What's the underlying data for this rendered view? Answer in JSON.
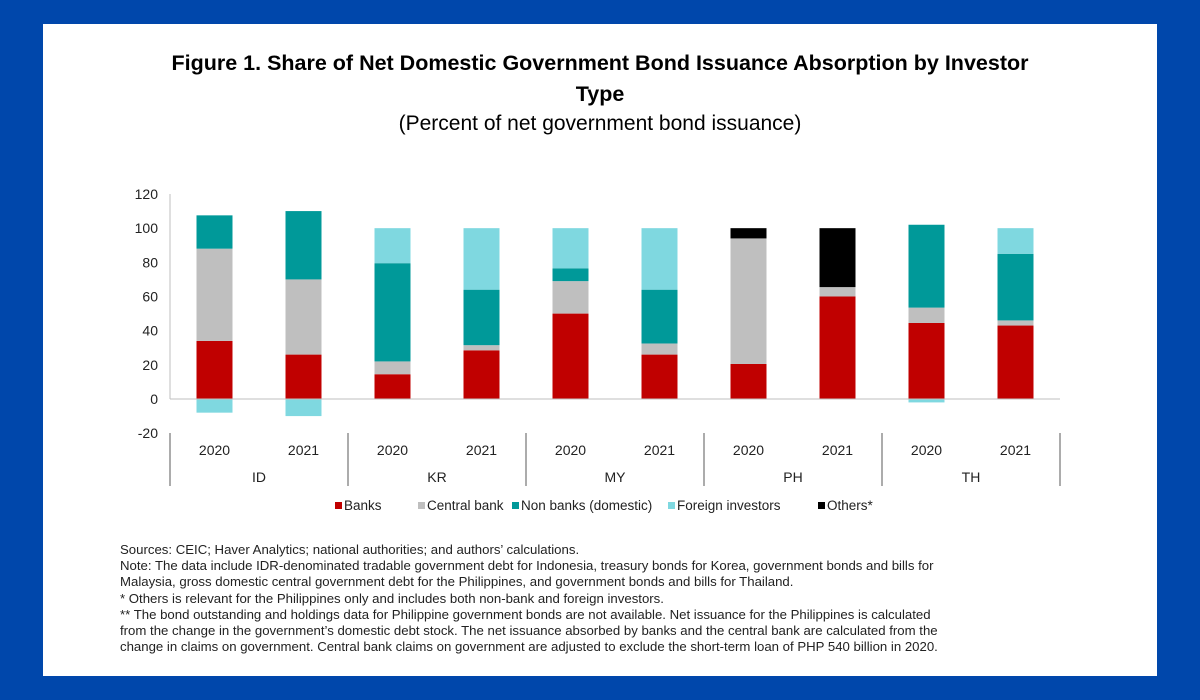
{
  "figure": {
    "title_line1": "Figure 1. Share of Net Domestic Government Bond Issuance Absorption by Investor",
    "title_line2": "Type",
    "subtitle": "(Percent of net government bond issuance)"
  },
  "notes": [
    "Sources: CEIC; Haver Analytics; national authorities; and authors’ calculations.",
    "Note: The data include IDR-denominated tradable government debt for Indonesia, treasury bonds for Korea, government bonds and bills for",
    "Malaysia, gross domestic central government debt for the Philippines, and government bonds and bills for Thailand.",
    "* Others is relevant for the Philippines only and includes both non-bank and foreign investors.",
    "** The bond outstanding and holdings data for Philippine government bonds are not available. Net issuance for the Philippines is calculated",
    "from the change in the government’s domestic debt stock. The net issuance absorbed by banks and the central bank are calculated from the",
    "change in claims on government. Central bank claims on government are adjusted to exclude the short-term loan of PHP 540 billion in 2020."
  ],
  "chart_data": {
    "type": "bar",
    "stacked": true,
    "title": "Figure 1. Share of Net Domestic Government Bond Issuance Absorption by Investor Type",
    "subtitle": "(Percent of net government bond issuance)",
    "xlabel": "",
    "ylabel": "",
    "ylim": [
      -20,
      120
    ],
    "yticks": [
      -20,
      0,
      20,
      40,
      60,
      80,
      100,
      120
    ],
    "grid": false,
    "legend_position": "bottom",
    "groups": [
      "ID",
      "KR",
      "MY",
      "PH",
      "TH"
    ],
    "categories": [
      "2020",
      "2021",
      "2020",
      "2021",
      "2020",
      "2021",
      "2020",
      "2021",
      "2020",
      "2021"
    ],
    "category_groups": [
      "ID",
      "ID",
      "KR",
      "KR",
      "MY",
      "MY",
      "PH",
      "PH",
      "TH",
      "TH"
    ],
    "series": [
      {
        "name": "Banks",
        "color": "#C00000",
        "values": [
          34,
          26,
          14.5,
          28.5,
          50,
          26,
          20.5,
          60,
          44.5,
          43
        ]
      },
      {
        "name": "Central bank",
        "color": "#BFBFBF",
        "values": [
          54,
          44,
          7.5,
          3,
          19,
          6.5,
          73.5,
          5.5,
          9,
          3
        ]
      },
      {
        "name": "Non banks (domestic)",
        "color": "#009999",
        "values": [
          19.5,
          40,
          57.5,
          32.5,
          7.5,
          31.5,
          0,
          0,
          48.5,
          39
        ]
      },
      {
        "name": "Foreign investors",
        "color": "#7FD8E0",
        "values": [
          -8,
          -10,
          20.5,
          36,
          23.5,
          36,
          0,
          0,
          -2,
          15
        ]
      },
      {
        "name": "Others*",
        "color": "#000000",
        "values": [
          0,
          0,
          0,
          0,
          0,
          0,
          6,
          34.5,
          0,
          0
        ]
      }
    ]
  }
}
